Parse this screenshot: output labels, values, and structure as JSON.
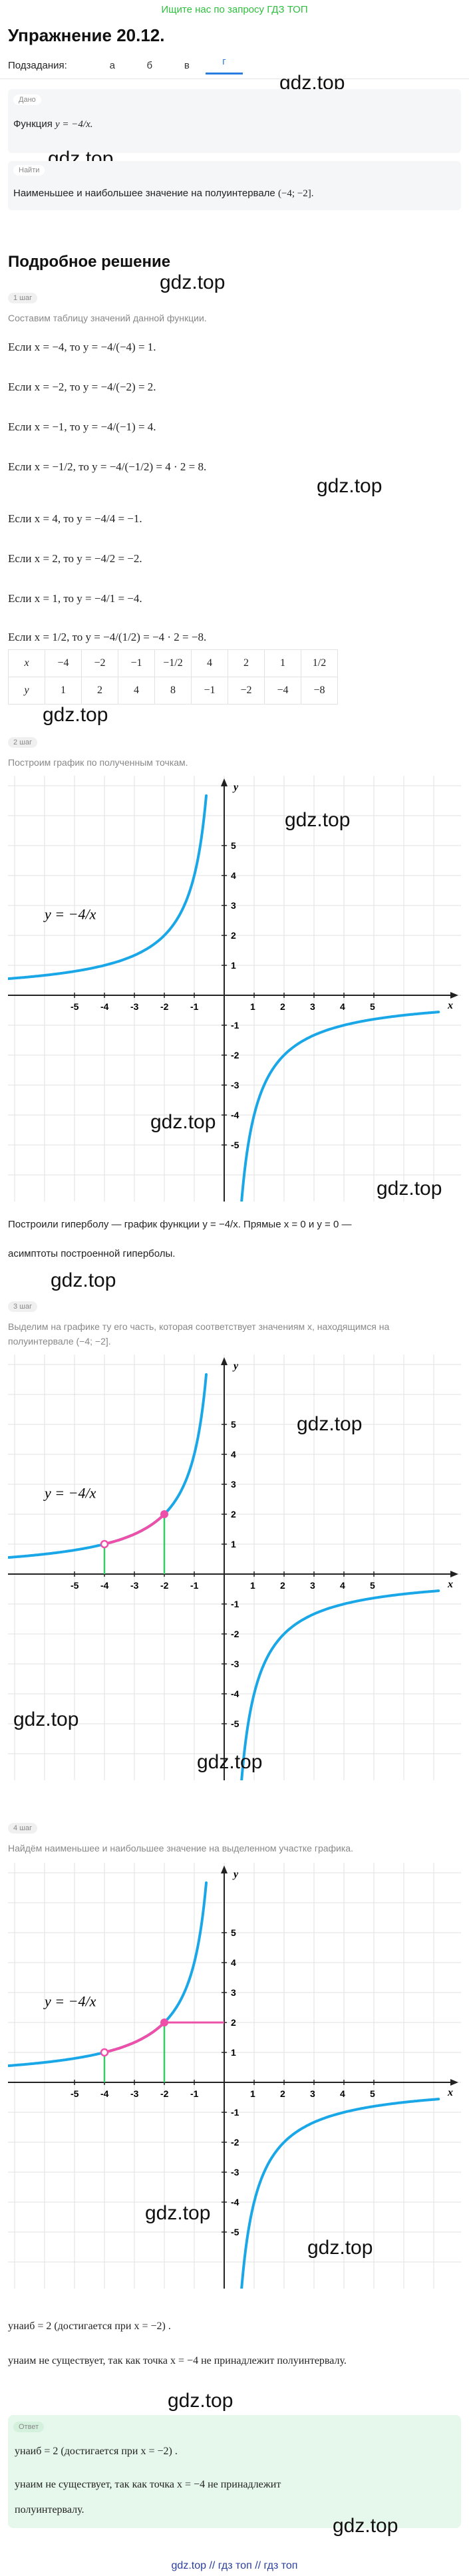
{
  "top_link": "Ищите нас по запросу ГДЗ ТОП",
  "exercise_title": "Упражнение 20.12.",
  "subtasks": {
    "label": "Подзадания:",
    "items": [
      "а",
      "б",
      "в",
      "г"
    ],
    "active": "г"
  },
  "watermark": "gdz.top",
  "given": {
    "badge": "Дано",
    "text_prefix": "Функция",
    "formula": "y = −4/x."
  },
  "find": {
    "badge": "Найти",
    "text": "Наименьшее и наибольшее значение на полуинтервале",
    "interval": "(−4; −2]."
  },
  "solution_heading": "Подробное решение",
  "step1": {
    "badge": "1 шаг",
    "hint": "Составим таблицу значений данной функции.",
    "lines": [
      "Если x = −4, то y = −4/(−4) = 1.",
      "Если x = −2, то y = −4/(−2) = 2.",
      "Если x = −1, то y = −4/(−1) = 4.",
      "Если x = −1/2, то y = −4/(−1/2) = 4 · 2 = 8.",
      "Если x = 4, то y = −4/4 = −1.",
      "Если x = 2, то y = −4/2 = −2.",
      "Если x = 1, то y = −4/1 = −4.",
      "Если x = 1/2, то y = −4/(1/2) = −4 · 2 = −8."
    ],
    "table": {
      "x_label": "x",
      "y_label": "y",
      "x": [
        "−4",
        "−2",
        "−1",
        "−1/2",
        "4",
        "2",
        "1",
        "1/2"
      ],
      "y": [
        "1",
        "2",
        "4",
        "8",
        "−1",
        "−2",
        "−4",
        "−8"
      ]
    }
  },
  "step2": {
    "badge": "2 шаг",
    "hint": "Построим график по полученным точкам.",
    "text1": "Построили гиперболу — график функции y = −4/x. Прямые x = 0 и y = 0 —",
    "text2": "асимптоты построенной гиперболы."
  },
  "step3": {
    "badge": "3 шаг",
    "hint1": "Выделим на графике ту его часть, которая соответствует значениям x, находящимся на",
    "hint2": "полуинтервале (−4; −2]."
  },
  "step4": {
    "badge": "4 шаг",
    "hint": "Найдём наименьшее и наибольшее значение на выделенном участке графика.",
    "line1": "yнаиб = 2 (достигается при x = −2) .",
    "line2": "yнаим не существует, так как точка x = −4 не принадлежит полуинтервалу."
  },
  "answer": {
    "badge": "Ответ",
    "line1": "yнаиб = 2 (достигается при x = −2) .",
    "line2": "yнаим не существует, так как точка x = −4 не принадлежит",
    "line3": "полуинтервалу."
  },
  "graph": {
    "curve_label": "y = −4/x",
    "x_axis": "x",
    "y_axis": "y",
    "x_ticks": [
      "-5",
      "-4",
      "-3",
      "-2",
      "-1",
      "1",
      "2",
      "3",
      "4",
      "5"
    ],
    "y_ticks": [
      "5",
      "4",
      "3",
      "2",
      "1",
      "-1",
      "-2",
      "-3",
      "-4",
      "-5"
    ],
    "colors": {
      "curve": "#1aa7e8",
      "highlight": "#ee4fa8",
      "guide": "#33cc66",
      "grid": "#e2e2e2"
    }
  },
  "footer": "gdz.top  //  гдз топ  //  гдз топ"
}
